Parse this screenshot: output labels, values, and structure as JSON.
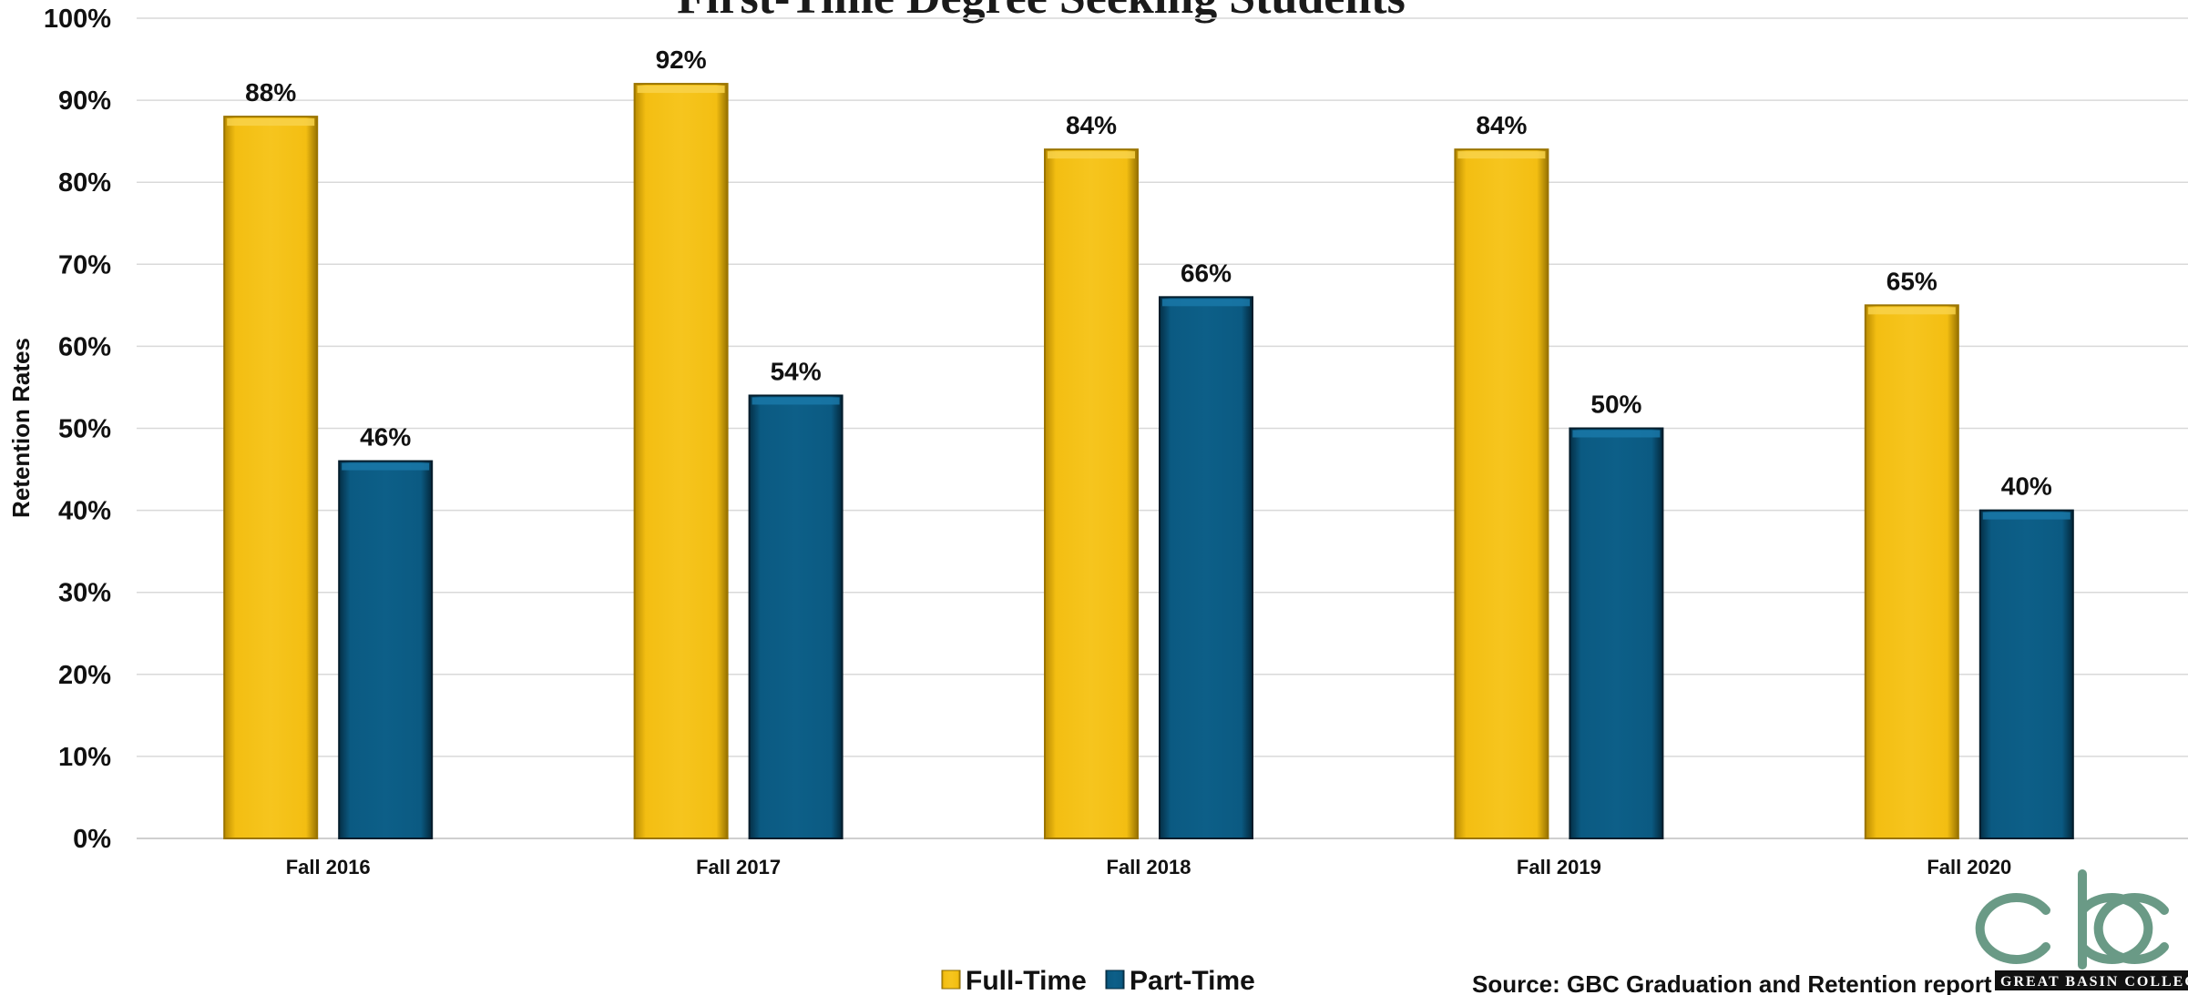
{
  "chart_data": {
    "type": "bar",
    "title": "First-Time Degree Seeking Students",
    "xlabel": "",
    "ylabel": "Retention Rates",
    "ylim": [
      0,
      100
    ],
    "yticks": [
      "0%",
      "10%",
      "20%",
      "30%",
      "40%",
      "50%",
      "60%",
      "70%",
      "80%",
      "90%",
      "100%"
    ],
    "categories": [
      "Fall 2016",
      "Fall 2017",
      "Fall 2018",
      "Fall 2019",
      "Fall 2020"
    ],
    "series": [
      {
        "name": "Full-Time",
        "values": [
          88,
          92,
          84,
          84,
          65
        ],
        "labels": [
          "88%",
          "92%",
          "84%",
          "84%",
          "65%"
        ]
      },
      {
        "name": "Part-Time",
        "values": [
          46,
          54,
          66,
          50,
          40
        ],
        "labels": [
          "46%",
          "54%",
          "66%",
          "50%",
          "40%"
        ]
      }
    ],
    "grid": true,
    "legend_position": "bottom-center"
  },
  "colors": {
    "full_time": "#F0B800",
    "part_time": "#0A5278",
    "gridline": "#d9d9d9",
    "logo": "#6a9a86"
  },
  "source": "Source: GBC Graduation and Retention report",
  "logo": {
    "letters": "gbc",
    "wordmark": "GREAT BASIN COLLEGE"
  }
}
